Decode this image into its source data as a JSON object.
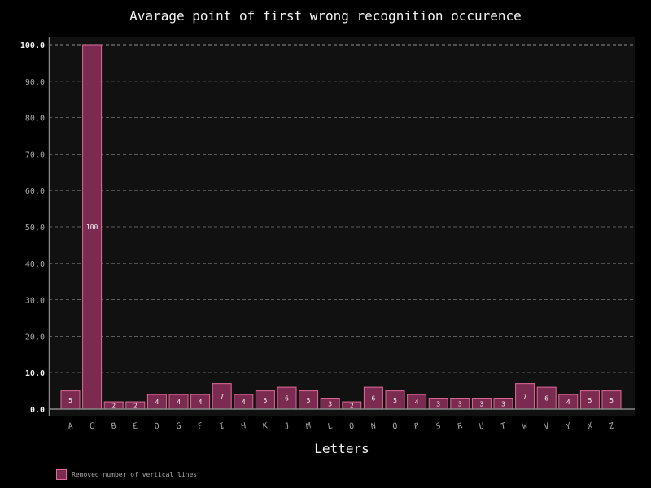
{
  "chart_data": {
    "type": "bar",
    "title": "Avarage point of first wrong recognition occurence",
    "xlabel": "Letters",
    "ylabel": "",
    "ylim": [
      0,
      100
    ],
    "yticks": [
      "0.0",
      "10.0",
      "20.0",
      "30.0",
      "40.0",
      "50.0",
      "60.0",
      "70.0",
      "80.0",
      "90.0",
      "100.0"
    ],
    "grid": true,
    "legend_position": "bottom-left",
    "categories": [
      "A",
      "C",
      "B",
      "E",
      "D",
      "G",
      "F",
      "I",
      "H",
      "K",
      "J",
      "M",
      "L",
      "O",
      "N",
      "Q",
      "P",
      "S",
      "R",
      "U",
      "T",
      "W",
      "V",
      "Y",
      "X",
      "Z"
    ],
    "series": [
      {
        "name": "Removed number of vertical lines",
        "values": [
          5,
          100,
          2,
          2,
          4,
          4,
          4,
          7,
          4,
          5,
          6,
          5,
          3,
          2,
          6,
          5,
          4,
          3,
          3,
          3,
          3,
          7,
          6,
          4,
          5,
          5
        ],
        "color": "#7a2b4f",
        "edge_color": "#e06a9a"
      }
    ],
    "colors": {
      "background": "#000000",
      "plot_area": "#111111",
      "grid": "#777777",
      "axis": "#888888",
      "tick_text": "#a8a8a8",
      "label_text": "#f2f2f2"
    }
  }
}
